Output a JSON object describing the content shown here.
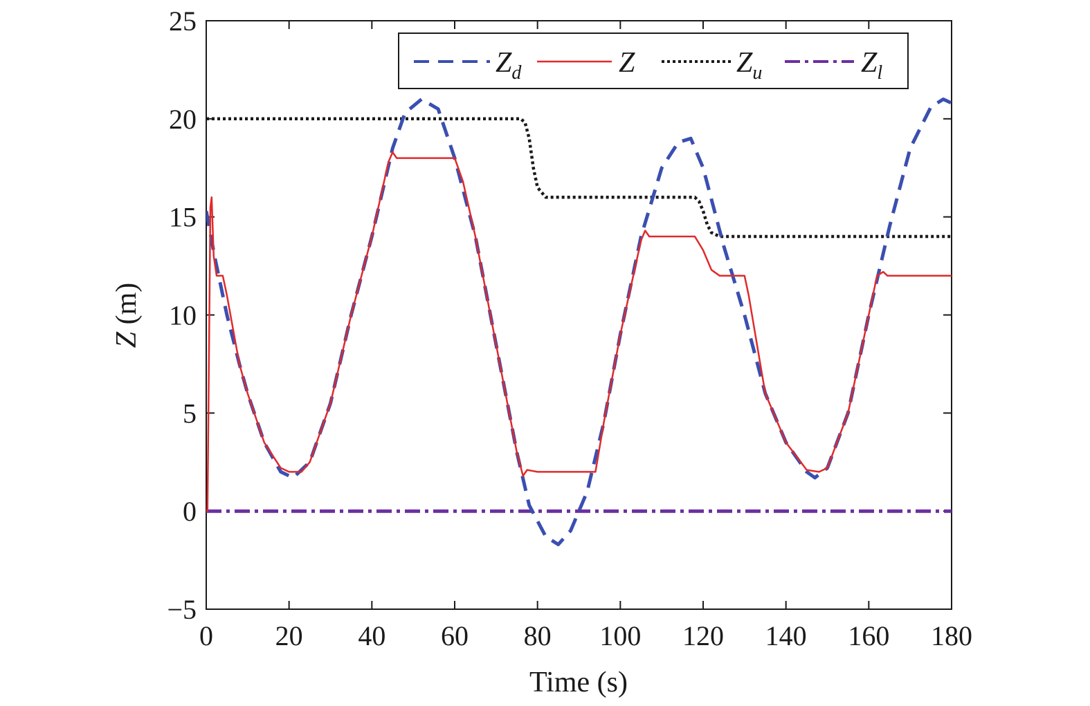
{
  "chart_data": {
    "type": "line",
    "xlabel": "Time (s)",
    "ylabel_var": "Z",
    "ylabel_unit": " (m)",
    "xlim": [
      0,
      180
    ],
    "ylim": [
      -5,
      25
    ],
    "xticks": [
      0,
      20,
      40,
      60,
      80,
      100,
      120,
      140,
      160,
      180
    ],
    "yticks": [
      -5,
      0,
      5,
      10,
      15,
      20,
      25
    ],
    "ytick_labels": [
      "−5",
      "0",
      "5",
      "10",
      "15",
      "20",
      "25"
    ],
    "grid": false,
    "legend_position": "top-right",
    "series": [
      {
        "name": "Z",
        "sub": "d",
        "color": "#3a4fb0",
        "style": "dashed",
        "points": [
          [
            0,
            15.3
          ],
          [
            2,
            13
          ],
          [
            5,
            10
          ],
          [
            8,
            7.5
          ],
          [
            10,
            6
          ],
          [
            14,
            3.5
          ],
          [
            18,
            2
          ],
          [
            21,
            1.7
          ],
          [
            25,
            2.5
          ],
          [
            30,
            5.5
          ],
          [
            35,
            10
          ],
          [
            40,
            14
          ],
          [
            45,
            18.5
          ],
          [
            48,
            20.3
          ],
          [
            52,
            21
          ],
          [
            56,
            20.5
          ],
          [
            60,
            18
          ],
          [
            65,
            14
          ],
          [
            70,
            8.5
          ],
          [
            75,
            3
          ],
          [
            78,
            0.3
          ],
          [
            82,
            -1.3
          ],
          [
            85,
            -1.7
          ],
          [
            88,
            -1
          ],
          [
            92,
            1
          ],
          [
            96,
            4.5
          ],
          [
            100,
            9
          ],
          [
            105,
            14
          ],
          [
            110,
            17.5
          ],
          [
            114,
            18.8
          ],
          [
            117,
            19
          ],
          [
            120,
            17.5
          ],
          [
            125,
            13.5
          ],
          [
            130,
            10
          ],
          [
            135,
            6
          ],
          [
            140,
            3.5
          ],
          [
            145,
            2
          ],
          [
            147,
            1.7
          ],
          [
            150,
            2.2
          ],
          [
            155,
            5
          ],
          [
            160,
            10
          ],
          [
            165,
            14.5
          ],
          [
            170,
            18.5
          ],
          [
            175,
            20.6
          ],
          [
            178,
            21
          ],
          [
            180,
            20.8
          ]
        ]
      },
      {
        "name": "Z",
        "sub": "",
        "color": "#e02a2a",
        "style": "solid",
        "points": [
          [
            0,
            0
          ],
          [
            0.3,
            0
          ],
          [
            0.8,
            11
          ],
          [
            1,
            15.5
          ],
          [
            1.3,
            16
          ],
          [
            1.8,
            13
          ],
          [
            2.5,
            12
          ],
          [
            4,
            12
          ],
          [
            5,
            11
          ],
          [
            8,
            7.5
          ],
          [
            10,
            6
          ],
          [
            14,
            3.5
          ],
          [
            18,
            2.2
          ],
          [
            20,
            2
          ],
          [
            23,
            2
          ],
          [
            25,
            2.5
          ],
          [
            30,
            5.5
          ],
          [
            35,
            10
          ],
          [
            40,
            14
          ],
          [
            44,
            17.8
          ],
          [
            45,
            18.3
          ],
          [
            46,
            18
          ],
          [
            60,
            18
          ],
          [
            62,
            16.8
          ],
          [
            65,
            14
          ],
          [
            70,
            8.5
          ],
          [
            75,
            3
          ],
          [
            76.5,
            1.8
          ],
          [
            77.5,
            2.1
          ],
          [
            80,
            2
          ],
          [
            94,
            2
          ],
          [
            96,
            4.5
          ],
          [
            100,
            9
          ],
          [
            105,
            13.8
          ],
          [
            106,
            14.3
          ],
          [
            107,
            14
          ],
          [
            113,
            14
          ],
          [
            118,
            14
          ],
          [
            120,
            13.3
          ],
          [
            122,
            12.3
          ],
          [
            124,
            12
          ],
          [
            130,
            12
          ],
          [
            131,
            11
          ],
          [
            135,
            6
          ],
          [
            140,
            3.5
          ],
          [
            145,
            2.1
          ],
          [
            148,
            2
          ],
          [
            150,
            2.2
          ],
          [
            155,
            5
          ],
          [
            160,
            10
          ],
          [
            162,
            12
          ],
          [
            163.5,
            12.2
          ],
          [
            164.5,
            12
          ],
          [
            170,
            12
          ],
          [
            180,
            12
          ]
        ]
      },
      {
        "name": "Z",
        "sub": "u",
        "color": "#1a1a1a",
        "style": "dotted",
        "points": [
          [
            0,
            20
          ],
          [
            76,
            20
          ],
          [
            77,
            19.8
          ],
          [
            78,
            19
          ],
          [
            79,
            17.5
          ],
          [
            80,
            16.5
          ],
          [
            82,
            16
          ],
          [
            118,
            16
          ],
          [
            119,
            15.8
          ],
          [
            120,
            15.3
          ],
          [
            121,
            14.6
          ],
          [
            122,
            14.2
          ],
          [
            124,
            14
          ],
          [
            180,
            14
          ]
        ]
      },
      {
        "name": "Z",
        "sub": "l",
        "color": "#6b2fa0",
        "style": "dashdot",
        "points": [
          [
            0,
            0
          ],
          [
            180,
            0
          ]
        ]
      }
    ]
  }
}
